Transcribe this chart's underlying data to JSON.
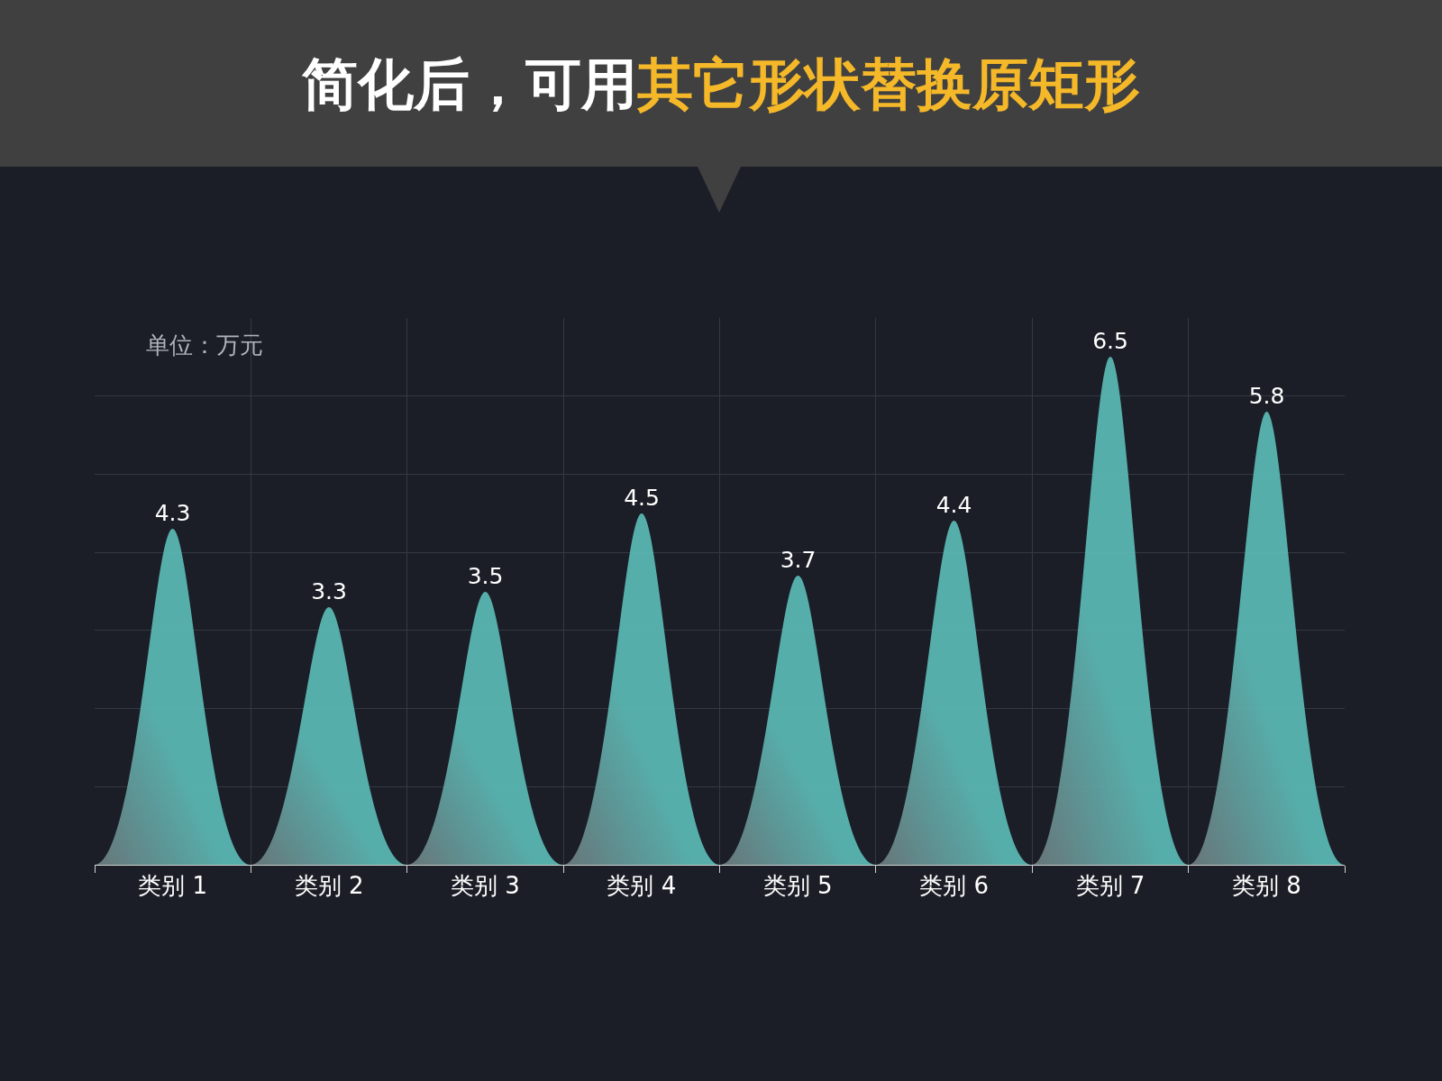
{
  "chart_data": {
    "type": "bar",
    "title": "简化后，可用其它形状替换原矩形",
    "annotations": [
      "单位：万元"
    ],
    "categories": [
      "类别 1",
      "类别 2",
      "类别 3",
      "类别 4",
      "类别 5",
      "类别 6",
      "类别 7",
      "类别 8"
    ],
    "values": [
      4.3,
      3.3,
      3.5,
      4.5,
      3.7,
      4.4,
      6.5,
      5.8
    ],
    "color": "#5bbab6",
    "grid": true,
    "data_labels": true
  }
}
